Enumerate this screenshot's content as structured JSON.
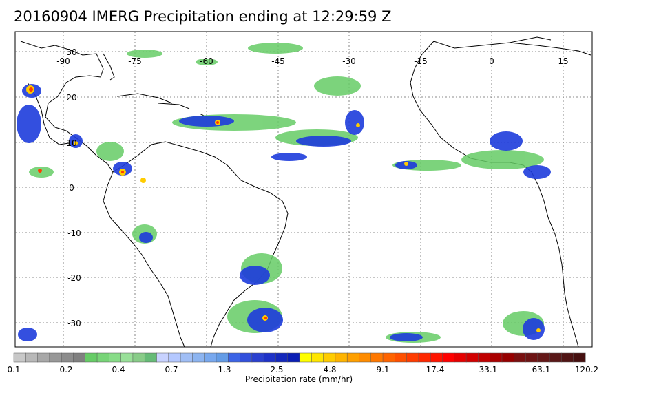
{
  "title": "20160904 IMERG Precipitation ending at 12:29:59 Z",
  "map": {
    "lon_ticks": [
      "-90",
      "-75",
      "-60",
      "-45",
      "-30",
      "-15",
      "0",
      "15"
    ],
    "lat_ticks": [
      "30",
      "20",
      "10",
      "0",
      "-10",
      "-20",
      "-30"
    ],
    "lon_range": [
      -96,
      21
    ],
    "lat_range": [
      -36,
      35
    ]
  },
  "colorbar": {
    "title": "Precipitation rate (mm/hr)",
    "labels": [
      "0.1",
      "0.2",
      "0.4",
      "0.7",
      "1.3",
      "2.5",
      "4.8",
      "9.1",
      "17.4",
      "33.1",
      "63.1",
      "120.2"
    ],
    "colors": [
      "#c8c8c8",
      "#b8b8b8",
      "#a8a8a8",
      "#989898",
      "#8c8c8c",
      "#808080",
      "#66cc66",
      "#77d477",
      "#88dc88",
      "#99e099",
      "#88cc88",
      "#66bb77",
      "#c8d2ff",
      "#b4c8ff",
      "#a0bef5",
      "#8cb4f0",
      "#78a8ee",
      "#649ce6",
      "#3c64e6",
      "#3250dc",
      "#2a40d0",
      "#1e32c8",
      "#1428bc",
      "#0a1eb4",
      "#ffff00",
      "#ffe600",
      "#ffcc00",
      "#ffb400",
      "#ffa000",
      "#ff8c00",
      "#ff7800",
      "#ff6400",
      "#ff5000",
      "#ff3c00",
      "#ff2800",
      "#ff1400",
      "#ff0000",
      "#e60000",
      "#d20000",
      "#c00000",
      "#aa0000",
      "#960000",
      "#7a1010",
      "#6e1414",
      "#641818",
      "#5a1818",
      "#501414",
      "#461010"
    ],
    "colors_count_note": ""
  }
}
